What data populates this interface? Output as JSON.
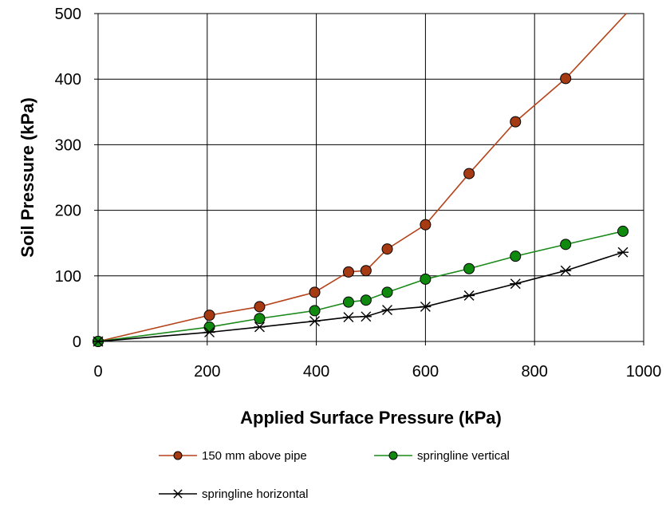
{
  "chart_data": {
    "type": "line",
    "xlabel": "Applied Surface Pressure (kPa)",
    "ylabel": "Soil Pressure (kPa)",
    "xlim": [
      0,
      1000
    ],
    "ylim": [
      0,
      500
    ],
    "xticks": [
      0,
      200,
      400,
      600,
      800,
      1000
    ],
    "yticks": [
      0,
      100,
      200,
      300,
      400,
      500
    ],
    "grid": true,
    "legend_position": "bottom",
    "series": [
      {
        "name": "150 mm above pipe",
        "color": "#b5431a",
        "marker": "circle",
        "marker_fill": "#a63a12",
        "x": [
          0,
          204,
          296,
          397,
          459,
          491,
          530,
          600,
          680,
          765,
          857,
          968
        ],
        "y": [
          0,
          40,
          53,
          75,
          106,
          108,
          141,
          178,
          256,
          335,
          401,
          510
        ]
      },
      {
        "name": "springline vertical",
        "color": "#1a8a1a",
        "marker": "circle",
        "marker_fill": "#0f8a0f",
        "x": [
          0,
          204,
          296,
          397,
          459,
          491,
          530,
          600,
          680,
          765,
          857,
          962
        ],
        "y": [
          0,
          22,
          35,
          47,
          60,
          63,
          75,
          95,
          111,
          130,
          148,
          168
        ]
      },
      {
        "name": "springline horizontal",
        "color": "#000000",
        "marker": "asterisk",
        "marker_fill": "#000000",
        "x": [
          0,
          204,
          296,
          397,
          459,
          491,
          530,
          600,
          680,
          765,
          857,
          962
        ],
        "y": [
          0,
          14,
          22,
          31,
          37,
          38,
          48,
          53,
          70,
          88,
          108,
          136
        ]
      }
    ]
  }
}
